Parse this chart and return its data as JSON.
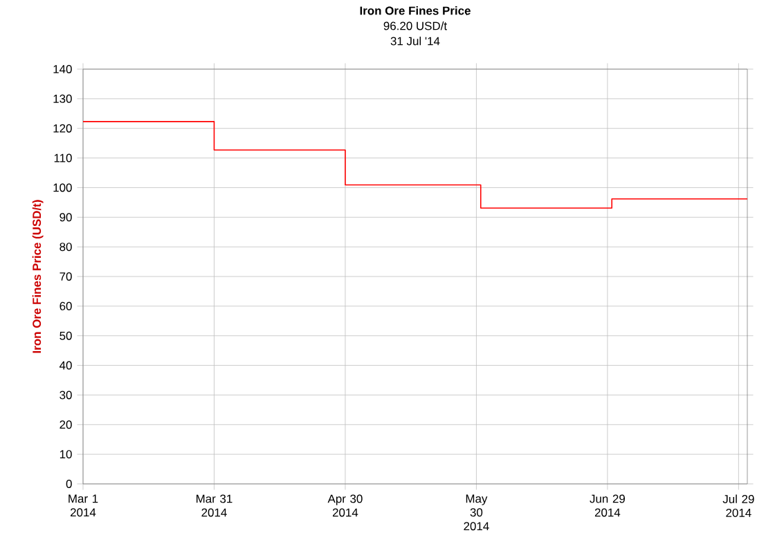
{
  "chart_data": {
    "type": "step",
    "title": "Iron Ore Fines Price",
    "subtitle": "96.20 USD/t",
    "annotations": [
      "31 Jul '14"
    ],
    "ylabel": "Iron Ore Fines Price (USD/t)",
    "x": [
      "2014-03-01",
      "2014-03-31",
      "2014-04-30",
      "2014-05-31",
      "2014-06-30",
      "2014-07-31"
    ],
    "series": [
      {
        "color": "#ff0000",
        "values": [
          122.3,
          112.7,
          100.9,
          93.1,
          96.2,
          96.2
        ]
      }
    ],
    "xlim": [
      "2014-03-01",
      "2014-07-31"
    ],
    "xticks": [
      {
        "value": "2014-03-01",
        "label": "Mar 1 2014"
      },
      {
        "value": "2014-03-31",
        "label": "Mar 31 2014"
      },
      {
        "value": "2014-04-30",
        "label": "Apr 30 2014"
      },
      {
        "value": "2014-05-30",
        "label": "May 30 2014"
      },
      {
        "value": "2014-06-29",
        "label": "Jun 29 2014"
      },
      {
        "value": "2014-07-29",
        "label": "Jul 29 2014"
      }
    ],
    "ylim": [
      0,
      140
    ],
    "yticks": [
      0,
      10,
      20,
      30,
      40,
      50,
      60,
      70,
      80,
      90,
      100,
      110,
      120,
      130,
      140
    ],
    "grid": true
  }
}
